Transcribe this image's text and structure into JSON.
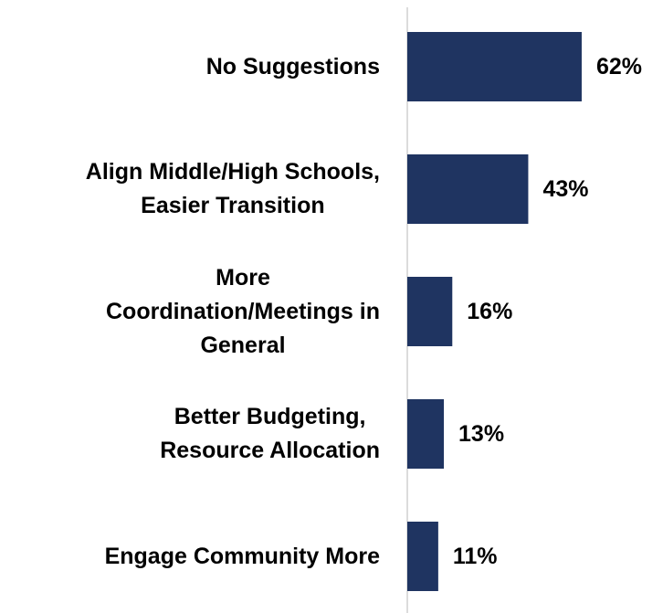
{
  "chart_data": {
    "type": "bar",
    "orientation": "horizontal",
    "categories": [
      "No Suggestions",
      "Align Middle/High Schools,\nEasier Transition",
      "More\nCoordination/Meetings in\nGeneral",
      "Better Budgeting,\nResource Allocation",
      "Engage Community More"
    ],
    "values": [
      62,
      43,
      16,
      13,
      11
    ],
    "value_labels": [
      "62%",
      "43%",
      "16%",
      "13%",
      "11%"
    ],
    "color": "#1f3461"
  }
}
